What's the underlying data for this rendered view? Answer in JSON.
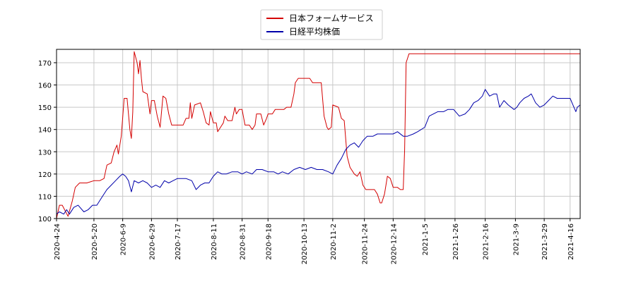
{
  "chart_data": {
    "type": "line",
    "title": "",
    "xlabel": "",
    "ylabel": "",
    "ylim": [
      100,
      176
    ],
    "xlim": [
      "2020-04-24",
      "2021-04-23"
    ],
    "grid": true,
    "legend_position": "top-center",
    "y_ticks": [
      100,
      110,
      120,
      130,
      140,
      150,
      160,
      170
    ],
    "x_ticks": [
      "2020-4-24",
      "2020-5-20",
      "2020-6-9",
      "2020-6-29",
      "2020-7-17",
      "2020-8-11",
      "2020-8-31",
      "2020-9-18",
      "2020-10-13",
      "2020-11-2",
      "2020-11-24",
      "2020-12-14",
      "2021-1-5",
      "2021-1-26",
      "2021-2-16",
      "2021-3-9",
      "2021-3-29",
      "2021-4-16"
    ],
    "x_tick_dates": [
      "2020-04-24",
      "2020-05-20",
      "2020-06-09",
      "2020-06-29",
      "2020-07-17",
      "2020-08-11",
      "2020-08-31",
      "2020-09-18",
      "2020-10-13",
      "2020-11-02",
      "2020-11-24",
      "2020-12-14",
      "2021-01-05",
      "2021-01-26",
      "2021-02-16",
      "2021-03-09",
      "2021-03-29",
      "2021-04-16"
    ],
    "series": [
      {
        "name": "日本フォームサービス",
        "color": "#d40000",
        "points": [
          [
            "2020-04-24",
            100
          ],
          [
            "2020-04-26",
            106
          ],
          [
            "2020-04-28",
            106
          ],
          [
            "2020-05-02",
            101
          ],
          [
            "2020-05-05",
            108
          ],
          [
            "2020-05-07",
            114
          ],
          [
            "2020-05-10",
            116
          ],
          [
            "2020-05-15",
            116
          ],
          [
            "2020-05-20",
            117
          ],
          [
            "2020-05-24",
            117
          ],
          [
            "2020-05-27",
            118
          ],
          [
            "2020-05-29",
            124
          ],
          [
            "2020-06-01",
            125
          ],
          [
            "2020-06-03",
            130
          ],
          [
            "2020-06-05",
            133
          ],
          [
            "2020-06-06",
            129
          ],
          [
            "2020-06-08",
            137
          ],
          [
            "2020-06-10",
            154
          ],
          [
            "2020-06-12",
            154
          ],
          [
            "2020-06-14",
            140
          ],
          [
            "2020-06-15",
            136
          ],
          [
            "2020-06-16",
            148
          ],
          [
            "2020-06-17",
            175
          ],
          [
            "2020-06-19",
            170
          ],
          [
            "2020-06-20",
            165
          ],
          [
            "2020-06-21",
            171
          ],
          [
            "2020-06-22",
            163
          ],
          [
            "2020-06-23",
            157
          ],
          [
            "2020-06-26",
            156
          ],
          [
            "2020-06-28",
            147
          ],
          [
            "2020-06-29",
            153
          ],
          [
            "2020-07-01",
            153
          ],
          [
            "2020-07-03",
            146
          ],
          [
            "2020-07-05",
            141
          ],
          [
            "2020-07-07",
            155
          ],
          [
            "2020-07-09",
            154
          ],
          [
            "2020-07-11",
            147
          ],
          [
            "2020-07-13",
            142
          ],
          [
            "2020-07-18",
            142
          ],
          [
            "2020-07-21",
            142
          ],
          [
            "2020-07-23",
            145
          ],
          [
            "2020-07-25",
            145
          ],
          [
            "2020-07-26",
            152
          ],
          [
            "2020-07-27",
            145
          ],
          [
            "2020-07-29",
            151
          ],
          [
            "2020-08-02",
            152
          ],
          [
            "2020-08-04",
            148
          ],
          [
            "2020-08-06",
            143
          ],
          [
            "2020-08-08",
            142
          ],
          [
            "2020-08-09",
            148
          ],
          [
            "2020-08-11",
            143
          ],
          [
            "2020-08-13",
            143
          ],
          [
            "2020-08-14",
            139
          ],
          [
            "2020-08-16",
            141
          ],
          [
            "2020-08-18",
            143
          ],
          [
            "2020-08-19",
            146
          ],
          [
            "2020-08-21",
            144
          ],
          [
            "2020-08-24",
            144
          ],
          [
            "2020-08-26",
            150
          ],
          [
            "2020-08-27",
            147
          ],
          [
            "2020-08-29",
            149
          ],
          [
            "2020-08-31",
            149
          ],
          [
            "2020-09-02",
            142
          ],
          [
            "2020-09-05",
            142
          ],
          [
            "2020-09-07",
            140
          ],
          [
            "2020-09-09",
            142
          ],
          [
            "2020-09-10",
            147
          ],
          [
            "2020-09-13",
            147
          ],
          [
            "2020-09-15",
            142
          ],
          [
            "2020-09-17",
            145
          ],
          [
            "2020-09-18",
            147
          ],
          [
            "2020-09-21",
            147
          ],
          [
            "2020-09-23",
            149
          ],
          [
            "2020-09-29",
            149
          ],
          [
            "2020-10-01",
            150
          ],
          [
            "2020-10-04",
            150
          ],
          [
            "2020-10-06",
            156
          ],
          [
            "2020-10-07",
            161
          ],
          [
            "2020-10-09",
            163
          ],
          [
            "2020-10-17",
            163
          ],
          [
            "2020-10-19",
            161
          ],
          [
            "2020-10-25",
            161
          ],
          [
            "2020-10-27",
            146
          ],
          [
            "2020-10-29",
            141
          ],
          [
            "2020-10-30",
            140
          ],
          [
            "2020-11-01",
            141
          ],
          [
            "2020-11-02",
            151
          ],
          [
            "2020-11-06",
            150
          ],
          [
            "2020-11-08",
            145
          ],
          [
            "2020-11-10",
            144
          ],
          [
            "2020-11-12",
            128
          ],
          [
            "2020-11-14",
            123
          ],
          [
            "2020-11-17",
            120
          ],
          [
            "2020-11-19",
            119
          ],
          [
            "2020-11-21",
            121
          ],
          [
            "2020-11-23",
            115
          ],
          [
            "2020-11-25",
            113
          ],
          [
            "2020-12-01",
            113
          ],
          [
            "2020-12-03",
            111
          ],
          [
            "2020-12-05",
            107
          ],
          [
            "2020-12-06",
            107
          ],
          [
            "2020-12-08",
            111
          ],
          [
            "2020-12-10",
            119
          ],
          [
            "2020-12-12",
            118
          ],
          [
            "2020-12-14",
            114
          ],
          [
            "2020-12-17",
            114
          ],
          [
            "2020-12-19",
            113
          ],
          [
            "2020-12-21",
            113
          ],
          [
            "2020-12-22",
            131
          ],
          [
            "2020-12-23",
            170
          ],
          [
            "2020-12-25",
            174
          ],
          [
            "2021-01-05",
            174
          ],
          [
            "2021-02-05",
            174
          ],
          [
            "2021-03-05",
            174
          ],
          [
            "2021-04-05",
            174
          ],
          [
            "2021-04-23",
            174
          ]
        ]
      },
      {
        "name": "日経平均株価",
        "color": "#0000aa",
        "points": [
          [
            "2020-04-24",
            102
          ],
          [
            "2020-04-26",
            103
          ],
          [
            "2020-04-29",
            102
          ],
          [
            "2020-05-01",
            104
          ],
          [
            "2020-05-03",
            102
          ],
          [
            "2020-05-06",
            105
          ],
          [
            "2020-05-09",
            106
          ],
          [
            "2020-05-13",
            103
          ],
          [
            "2020-05-16",
            104
          ],
          [
            "2020-05-19",
            106
          ],
          [
            "2020-05-22",
            106
          ],
          [
            "2020-05-26",
            110
          ],
          [
            "2020-05-29",
            113
          ],
          [
            "2020-06-01",
            115
          ],
          [
            "2020-06-04",
            117
          ],
          [
            "2020-06-07",
            119
          ],
          [
            "2020-06-09",
            120
          ],
          [
            "2020-06-11",
            119
          ],
          [
            "2020-06-13",
            117
          ],
          [
            "2020-06-15",
            112
          ],
          [
            "2020-06-17",
            117
          ],
          [
            "2020-06-20",
            116
          ],
          [
            "2020-06-23",
            117
          ],
          [
            "2020-06-26",
            116
          ],
          [
            "2020-06-29",
            114
          ],
          [
            "2020-07-02",
            115
          ],
          [
            "2020-07-05",
            114
          ],
          [
            "2020-07-08",
            117
          ],
          [
            "2020-07-11",
            116
          ],
          [
            "2020-07-14",
            117
          ],
          [
            "2020-07-17",
            118
          ],
          [
            "2020-07-20",
            118
          ],
          [
            "2020-07-23",
            118
          ],
          [
            "2020-07-27",
            117
          ],
          [
            "2020-07-30",
            113
          ],
          [
            "2020-08-02",
            115
          ],
          [
            "2020-08-05",
            116
          ],
          [
            "2020-08-08",
            116
          ],
          [
            "2020-08-11",
            119
          ],
          [
            "2020-08-14",
            121
          ],
          [
            "2020-08-17",
            120
          ],
          [
            "2020-08-20",
            120
          ],
          [
            "2020-08-24",
            121
          ],
          [
            "2020-08-28",
            121
          ],
          [
            "2020-08-31",
            120
          ],
          [
            "2020-09-03",
            121
          ],
          [
            "2020-09-07",
            120
          ],
          [
            "2020-09-10",
            122
          ],
          [
            "2020-09-14",
            122
          ],
          [
            "2020-09-18",
            121
          ],
          [
            "2020-09-22",
            121
          ],
          [
            "2020-09-25",
            120
          ],
          [
            "2020-09-28",
            121
          ],
          [
            "2020-10-02",
            120
          ],
          [
            "2020-10-06",
            122
          ],
          [
            "2020-10-10",
            123
          ],
          [
            "2020-10-14",
            122
          ],
          [
            "2020-10-18",
            123
          ],
          [
            "2020-10-22",
            122
          ],
          [
            "2020-10-26",
            122
          ],
          [
            "2020-10-30",
            121
          ],
          [
            "2020-11-02",
            120
          ],
          [
            "2020-11-05",
            124
          ],
          [
            "2020-11-08",
            127
          ],
          [
            "2020-11-11",
            131
          ],
          [
            "2020-11-14",
            133
          ],
          [
            "2020-11-17",
            134
          ],
          [
            "2020-11-20",
            132
          ],
          [
            "2020-11-23",
            135
          ],
          [
            "2020-11-26",
            137
          ],
          [
            "2020-11-30",
            137
          ],
          [
            "2020-12-03",
            138
          ],
          [
            "2020-12-07",
            138
          ],
          [
            "2020-12-10",
            138
          ],
          [
            "2020-12-14",
            138
          ],
          [
            "2020-12-17",
            139
          ],
          [
            "2020-12-21",
            137
          ],
          [
            "2020-12-24",
            137
          ],
          [
            "2020-12-28",
            138
          ],
          [
            "2020-12-31",
            139
          ],
          [
            "2021-01-05",
            141
          ],
          [
            "2021-01-08",
            146
          ],
          [
            "2021-01-11",
            147
          ],
          [
            "2021-01-14",
            148
          ],
          [
            "2021-01-18",
            148
          ],
          [
            "2021-01-21",
            149
          ],
          [
            "2021-01-25",
            149
          ],
          [
            "2021-01-29",
            146
          ],
          [
            "2021-02-02",
            147
          ],
          [
            "2021-02-05",
            149
          ],
          [
            "2021-02-08",
            152
          ],
          [
            "2021-02-11",
            153
          ],
          [
            "2021-02-14",
            155
          ],
          [
            "2021-02-16",
            158
          ],
          [
            "2021-02-19",
            155
          ],
          [
            "2021-02-22",
            156
          ],
          [
            "2021-02-24",
            156
          ],
          [
            "2021-02-26",
            150
          ],
          [
            "2021-03-01",
            153
          ],
          [
            "2021-03-04",
            151
          ],
          [
            "2021-03-08",
            149
          ],
          [
            "2021-03-10",
            150
          ],
          [
            "2021-03-12",
            152
          ],
          [
            "2021-03-15",
            154
          ],
          [
            "2021-03-18",
            155
          ],
          [
            "2021-03-20",
            156
          ],
          [
            "2021-03-23",
            152
          ],
          [
            "2021-03-26",
            150
          ],
          [
            "2021-03-29",
            151
          ],
          [
            "2021-04-01",
            153
          ],
          [
            "2021-04-04",
            155
          ],
          [
            "2021-04-07",
            154
          ],
          [
            "2021-04-10",
            154
          ],
          [
            "2021-04-13",
            154
          ],
          [
            "2021-04-16",
            154
          ],
          [
            "2021-04-18",
            151
          ],
          [
            "2021-04-20",
            148
          ],
          [
            "2021-04-21",
            150
          ],
          [
            "2021-04-23",
            151
          ]
        ]
      }
    ]
  }
}
